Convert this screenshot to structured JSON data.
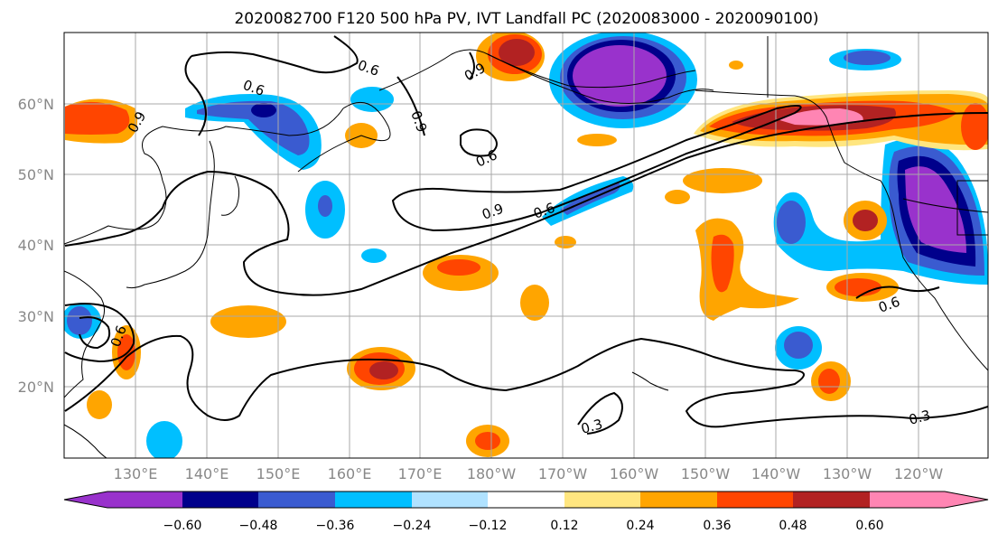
{
  "title": "2020082700 F120 500 hPa PV, IVT Landfall PC (2020083000 - 2020090100)",
  "lat_labels": [
    "60°N",
    "50°N",
    "40°N",
    "30°N",
    "20°N"
  ],
  "lon_labels": [
    "130°E",
    "140°E",
    "150°E",
    "160°E",
    "170°E",
    "180°W",
    "170°W",
    "160°W",
    "150°W",
    "140°W",
    "130°W",
    "120°W"
  ],
  "colorbar": {
    "ticks": [
      "−0.60",
      "−0.48",
      "−0.36",
      "−0.24",
      "−0.12",
      "0.12",
      "0.24",
      "0.36",
      "0.48",
      "0.60"
    ],
    "colors": [
      "#9932cc",
      "#00008b",
      "#3a5bd0",
      "#00bfff",
      "#b0e2ff",
      "#ffffff",
      "#ffe680",
      "#ffa500",
      "#ff4500",
      "#b22222",
      "#ff85b3"
    ]
  },
  "contour_labels": [
    "0.6",
    "0.6",
    "0.9",
    "0.9",
    "0.9",
    "0.6",
    "0.9",
    "0.6",
    "0.6",
    "0.6",
    "0.3",
    "0.3"
  ]
}
